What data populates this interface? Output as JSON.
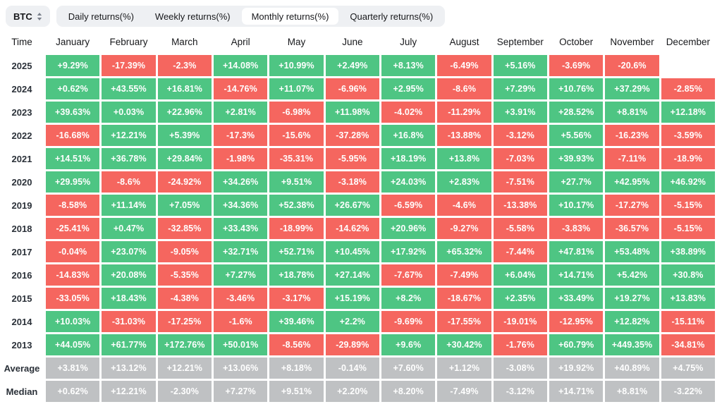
{
  "toolbar": {
    "symbol_selector": {
      "label": "BTC"
    },
    "tabs": [
      {
        "id": "daily",
        "label": "Daily returns(%)",
        "active": false
      },
      {
        "id": "weekly",
        "label": "Weekly returns(%)",
        "active": false
      },
      {
        "id": "monthly",
        "label": "Monthly returns(%)",
        "active": true
      },
      {
        "id": "quarterly",
        "label": "Quarterly returns(%)",
        "active": false
      }
    ]
  },
  "colors": {
    "positive": "#4ec583",
    "negative": "#f5665f",
    "neutral": "#bfc1c3",
    "toolbar_bg": "#eef0f3"
  },
  "table": {
    "corner_label": "Time",
    "columns": [
      "January",
      "February",
      "March",
      "April",
      "May",
      "June",
      "July",
      "August",
      "September",
      "October",
      "November",
      "December"
    ],
    "rows": [
      {
        "label": "2025",
        "type": "year",
        "values": [
          "+9.29%",
          "-17.39%",
          "-2.3%",
          "+14.08%",
          "+10.99%",
          "+2.49%",
          "+8.13%",
          "-6.49%",
          "+5.16%",
          "-3.69%",
          "-20.6%",
          null
        ]
      },
      {
        "label": "2024",
        "type": "year",
        "values": [
          "+0.62%",
          "+43.55%",
          "+16.81%",
          "-14.76%",
          "+11.07%",
          "-6.96%",
          "+2.95%",
          "-8.6%",
          "+7.29%",
          "+10.76%",
          "+37.29%",
          "-2.85%"
        ]
      },
      {
        "label": "2023",
        "type": "year",
        "values": [
          "+39.63%",
          "+0.03%",
          "+22.96%",
          "+2.81%",
          "-6.98%",
          "+11.98%",
          "-4.02%",
          "-11.29%",
          "+3.91%",
          "+28.52%",
          "+8.81%",
          "+12.18%"
        ]
      },
      {
        "label": "2022",
        "type": "year",
        "values": [
          "-16.68%",
          "+12.21%",
          "+5.39%",
          "-17.3%",
          "-15.6%",
          "-37.28%",
          "+16.8%",
          "-13.88%",
          "-3.12%",
          "+5.56%",
          "-16.23%",
          "-3.59%"
        ]
      },
      {
        "label": "2021",
        "type": "year",
        "values": [
          "+14.51%",
          "+36.78%",
          "+29.84%",
          "-1.98%",
          "-35.31%",
          "-5.95%",
          "+18.19%",
          "+13.8%",
          "-7.03%",
          "+39.93%",
          "-7.11%",
          "-18.9%"
        ]
      },
      {
        "label": "2020",
        "type": "year",
        "values": [
          "+29.95%",
          "-8.6%",
          "-24.92%",
          "+34.26%",
          "+9.51%",
          "-3.18%",
          "+24.03%",
          "+2.83%",
          "-7.51%",
          "+27.7%",
          "+42.95%",
          "+46.92%"
        ]
      },
      {
        "label": "2019",
        "type": "year",
        "values": [
          "-8.58%",
          "+11.14%",
          "+7.05%",
          "+34.36%",
          "+52.38%",
          "+26.67%",
          "-6.59%",
          "-4.6%",
          "-13.38%",
          "+10.17%",
          "-17.27%",
          "-5.15%"
        ]
      },
      {
        "label": "2018",
        "type": "year",
        "values": [
          "-25.41%",
          "+0.47%",
          "-32.85%",
          "+33.43%",
          "-18.99%",
          "-14.62%",
          "+20.96%",
          "-9.27%",
          "-5.58%",
          "-3.83%",
          "-36.57%",
          "-5.15%"
        ]
      },
      {
        "label": "2017",
        "type": "year",
        "values": [
          "-0.04%",
          "+23.07%",
          "-9.05%",
          "+32.71%",
          "+52.71%",
          "+10.45%",
          "+17.92%",
          "+65.32%",
          "-7.44%",
          "+47.81%",
          "+53.48%",
          "+38.89%"
        ]
      },
      {
        "label": "2016",
        "type": "year",
        "values": [
          "-14.83%",
          "+20.08%",
          "-5.35%",
          "+7.27%",
          "+18.78%",
          "+27.14%",
          "-7.67%",
          "-7.49%",
          "+6.04%",
          "+14.71%",
          "+5.42%",
          "+30.8%"
        ]
      },
      {
        "label": "2015",
        "type": "year",
        "values": [
          "-33.05%",
          "+18.43%",
          "-4.38%",
          "-3.46%",
          "-3.17%",
          "+15.19%",
          "+8.2%",
          "-18.67%",
          "+2.35%",
          "+33.49%",
          "+19.27%",
          "+13.83%"
        ]
      },
      {
        "label": "2014",
        "type": "year",
        "values": [
          "+10.03%",
          "-31.03%",
          "-17.25%",
          "-1.6%",
          "+39.46%",
          "+2.2%",
          "-9.69%",
          "-17.55%",
          "-19.01%",
          "-12.95%",
          "+12.82%",
          "-15.11%"
        ]
      },
      {
        "label": "2013",
        "type": "year",
        "values": [
          "+44.05%",
          "+61.77%",
          "+172.76%",
          "+50.01%",
          "-8.56%",
          "-29.89%",
          "+9.6%",
          "+30.42%",
          "-1.76%",
          "+60.79%",
          "+449.35%",
          "-34.81%"
        ]
      },
      {
        "label": "Average",
        "type": "summary",
        "values": [
          "+3.81%",
          "+13.12%",
          "+12.21%",
          "+13.06%",
          "+8.18%",
          "-0.14%",
          "+7.60%",
          "+1.12%",
          "-3.08%",
          "+19.92%",
          "+40.89%",
          "+4.75%"
        ]
      },
      {
        "label": "Median",
        "type": "summary",
        "values": [
          "+0.62%",
          "+12.21%",
          "-2.30%",
          "+7.27%",
          "+9.51%",
          "+2.20%",
          "+8.20%",
          "-7.49%",
          "-3.12%",
          "+14.71%",
          "+8.81%",
          "-3.22%"
        ]
      }
    ]
  }
}
